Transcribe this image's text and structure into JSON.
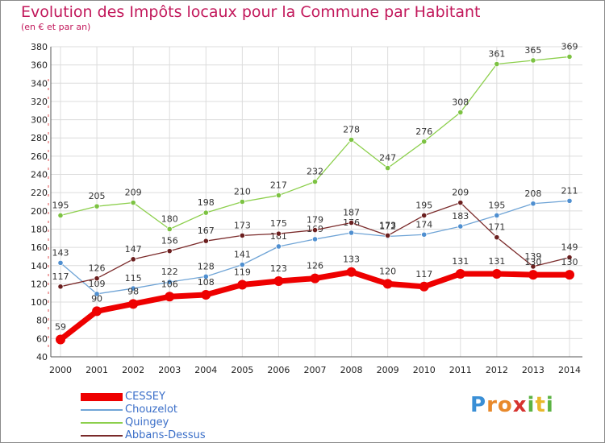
{
  "title": "Evolution des Impôts locaux pour la Commune par Habitant",
  "subtitle": "(en € et par an)",
  "logo": {
    "parts": [
      {
        "text": "P",
        "color": "#3a8fd6"
      },
      {
        "text": "r",
        "color": "#e8892b"
      },
      {
        "text": "o",
        "color": "#e8892b"
      },
      {
        "text": "x",
        "color": "#d6332f"
      },
      {
        "text": "i",
        "color": "#5bb343"
      },
      {
        "text": "t",
        "color": "#e8b82b"
      },
      {
        "text": "i",
        "color": "#5bb343"
      }
    ]
  },
  "chart_data": {
    "type": "line",
    "x": [
      "2000",
      "2001",
      "2002",
      "2003",
      "2004",
      "2005",
      "2006",
      "2007",
      "2008",
      "2009",
      "2010",
      "2011",
      "2012",
      "2013",
      "2014"
    ],
    "ylim": [
      40,
      380
    ],
    "yticks": [
      40,
      60,
      80,
      100,
      120,
      140,
      160,
      180,
      200,
      220,
      240,
      260,
      280,
      300,
      320,
      340,
      360,
      380
    ],
    "grid": true,
    "legend_position": "bottom-left",
    "series": [
      {
        "name": "Quingey",
        "color": "#8ccf4c",
        "marker": "#7cc242",
        "values": [
          195,
          205,
          209,
          180,
          198,
          210,
          217,
          232,
          278,
          247,
          276,
          308,
          361,
          365,
          369
        ],
        "labels": [
          "195",
          "205",
          "209",
          "180",
          "198",
          "210",
          "217",
          "232",
          "278",
          "247",
          "276",
          "308",
          "361",
          "365",
          "369"
        ]
      },
      {
        "name": "Chouzelot",
        "color": "#6fa4d6",
        "marker": "#4f8fd0",
        "values": [
          143,
          109,
          115,
          122,
          128,
          141,
          161,
          169,
          176,
          172,
          174,
          183,
          195,
          208,
          211
        ],
        "labels": [
          "143",
          "109",
          "115",
          "122",
          "128",
          "141",
          "161",
          "169",
          "176",
          "172",
          "174",
          "183",
          "195",
          "208",
          "211"
        ]
      },
      {
        "name": "Abbans-Dessus",
        "color": "#7a2a2a",
        "marker": "#6b1f1f",
        "values": [
          117,
          126,
          147,
          156,
          167,
          173,
          175,
          179,
          187,
          173,
          195,
          209,
          171,
          139,
          149
        ],
        "labels": [
          "117",
          "126",
          "147",
          "156",
          "167",
          "173",
          "175",
          "179",
          "187",
          "173",
          "195",
          "209",
          "171",
          "139",
          "149"
        ]
      },
      {
        "name": "CESSEY",
        "color": "#ee0000",
        "marker": "#ee0000",
        "values": [
          59,
          90,
          98,
          106,
          108,
          119,
          123,
          126,
          133,
          120,
          117,
          131,
          131,
          130,
          130
        ],
        "labels": [
          "59",
          "90",
          "98",
          "106",
          "108",
          "119",
          "123",
          "126",
          "133",
          "120",
          "117",
          "131",
          "131",
          "130",
          "130"
        ]
      }
    ],
    "legend": [
      "CESSEY",
      "Chouzelot",
      "Quingey",
      "Abbans-Dessus"
    ]
  }
}
